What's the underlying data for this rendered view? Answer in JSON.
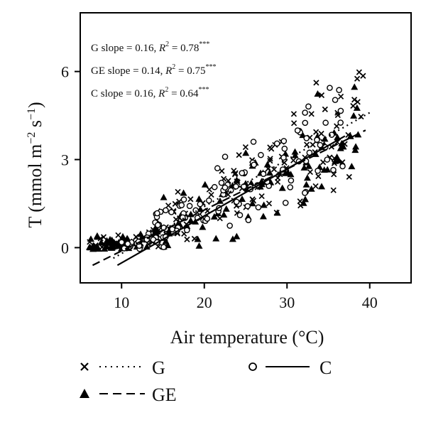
{
  "chart_data": {
    "type": "scatter",
    "xlabel": "Air temperature (°C)",
    "ylabel_main": "T (mmol m",
    "ylabel_exp1": "−2",
    "ylabel_mid": " s",
    "ylabel_exp2": "−1",
    "ylabel_end": ")",
    "xlim": [
      5,
      45
    ],
    "ylim": [
      -1.2,
      8
    ],
    "x_ticks": [
      10,
      20,
      30,
      40
    ],
    "y_ticks": [
      0,
      3,
      6
    ],
    "x_tick_labels": [
      "10",
      "20",
      "30",
      "40"
    ],
    "y_tick_labels": [
      "0",
      "3",
      "6"
    ],
    "grid": false,
    "legend_position": "bottom",
    "annotations": [
      {
        "prefix": "G slope = 0.16, ",
        "r": "R",
        "sq": "2",
        "eq": " = 0.78",
        "stars": "***"
      },
      {
        "prefix": "GE slope = 0.14, ",
        "r": "R",
        "sq": "2",
        "eq": " = 0.75",
        "stars": "***"
      },
      {
        "prefix": "C slope = 0.16, ",
        "r": "R",
        "sq": "2",
        "eq": " = 0.64",
        "stars": "***"
      }
    ],
    "series": [
      {
        "name": "G",
        "marker": "x",
        "line_style": "dotted",
        "slope": 0.16,
        "line_x": [
          9,
          40
        ],
        "line_y": [
          -0.36,
          4.6
        ],
        "n_points": 150
      },
      {
        "name": "GE",
        "marker": "triangle",
        "line_style": "dashed",
        "slope": 0.14,
        "line_x": [
          6.5,
          39.5
        ],
        "line_y": [
          -0.6,
          4.0
        ],
        "n_points": 150
      },
      {
        "name": "C",
        "marker": "circle",
        "line_style": "solid",
        "slope": 0.16,
        "line_x": [
          9.5,
          37
        ],
        "line_y": [
          -0.6,
          3.8
        ],
        "n_points": 130
      }
    ]
  },
  "legend": {
    "g_label": "G",
    "ge_label": "GE",
    "c_label": "C"
  }
}
